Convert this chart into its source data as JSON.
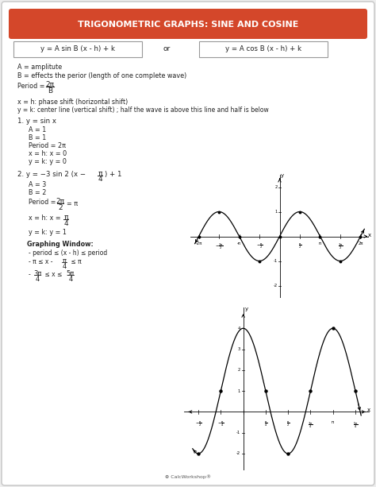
{
  "title": "TRIGONOMETRIC GRAPHS: SINE AND COSINE",
  "title_bg": "#d4472a",
  "formula1": "y = A sin B (x - h) + k",
  "formula2": "y = A cos B (x - h) + k",
  "formula_or": "or",
  "line1": "A = amplitute",
  "line2": "B = effects the perior (length of one complete wave)",
  "line3": "x = h: phase shift (horizontal shift)",
  "line4": "y = k: center line (vertical shift) ; half the wave is above this line and half is below",
  "example1_title": "1. y = sin x",
  "example1_A": "A = 1",
  "example1_B": "B = 1",
  "example1_period": "Period = 2π",
  "example1_xh": "x = h: x = 0",
  "example1_yk": "y = k: y = 0",
  "example2_A": "A = 3",
  "example2_B": "B = 2",
  "example2_yk": "y = k: y = 1",
  "graphing_window": "Graphing Window:",
  "text_color": "#222222",
  "page_bg": "#eeeeee",
  "card_bg": "#ffffff",
  "card_edge": "#cccccc"
}
